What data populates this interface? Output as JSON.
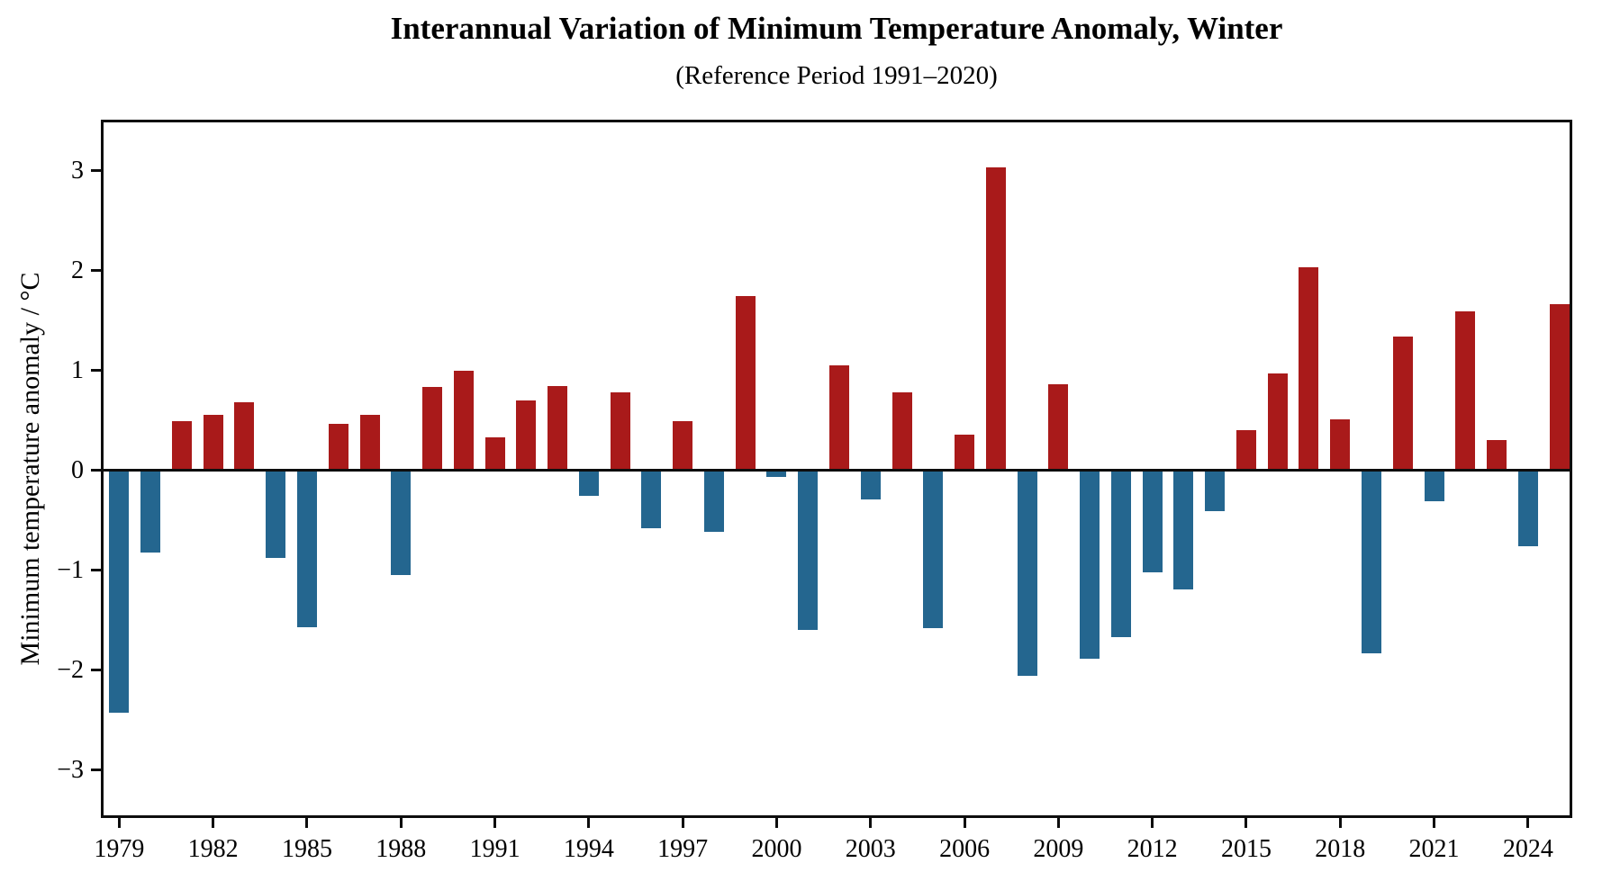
{
  "title": "Interannual Variation of Minimum Temperature Anomaly, Winter",
  "subtitle": "(Reference Period 1991–2020)",
  "chart_data": {
    "type": "bar",
    "title": "Interannual Variation of Minimum Temperature Anomaly, Winter",
    "subtitle": "(Reference Period 1991–2020)",
    "xlabel": "",
    "ylabel": "Minimum temperature anomaly / °C",
    "x": [
      1979,
      1980,
      1981,
      1982,
      1983,
      1984,
      1985,
      1986,
      1987,
      1988,
      1989,
      1990,
      1991,
      1992,
      1993,
      1994,
      1995,
      1996,
      1997,
      1998,
      1999,
      2000,
      2001,
      2002,
      2003,
      2004,
      2005,
      2006,
      2007,
      2008,
      2009,
      2010,
      2011,
      2012,
      2013,
      2014,
      2015,
      2016,
      2017,
      2018,
      2019,
      2020,
      2021,
      2022,
      2023,
      2024,
      2025
    ],
    "values": [
      -2.43,
      -0.82,
      0.49,
      0.55,
      0.68,
      -0.88,
      -1.57,
      0.46,
      0.55,
      -1.05,
      0.83,
      1.0,
      0.33,
      0.7,
      0.84,
      -0.26,
      0.78,
      -0.58,
      0.49,
      -0.62,
      1.74,
      -0.07,
      -1.6,
      1.05,
      -0.29,
      0.78,
      -1.58,
      0.36,
      3.03,
      -2.06,
      0.86,
      -1.89,
      -1.67,
      -1.02,
      -1.19,
      -0.41,
      0.4,
      0.97,
      2.03,
      0.51,
      -1.83,
      1.34,
      -0.31,
      1.59,
      0.3,
      -0.76,
      1.66
    ],
    "xticks": [
      1979,
      1982,
      1985,
      1988,
      1991,
      1994,
      1997,
      2000,
      2003,
      2006,
      2009,
      2012,
      2015,
      2018,
      2021,
      2024
    ],
    "ytick_labels": [
      "3",
      "2",
      "1",
      "0",
      "−1",
      "−2",
      "−3"
    ],
    "yticks": [
      3,
      2,
      1,
      0,
      -1,
      -2,
      -3
    ],
    "ylim": [
      -3.509,
      3.482
    ],
    "grid": false,
    "legend": "none",
    "colors": {
      "positive": "#a91a1a",
      "negative": "#24668f",
      "axis": "#0d0d0d"
    }
  }
}
